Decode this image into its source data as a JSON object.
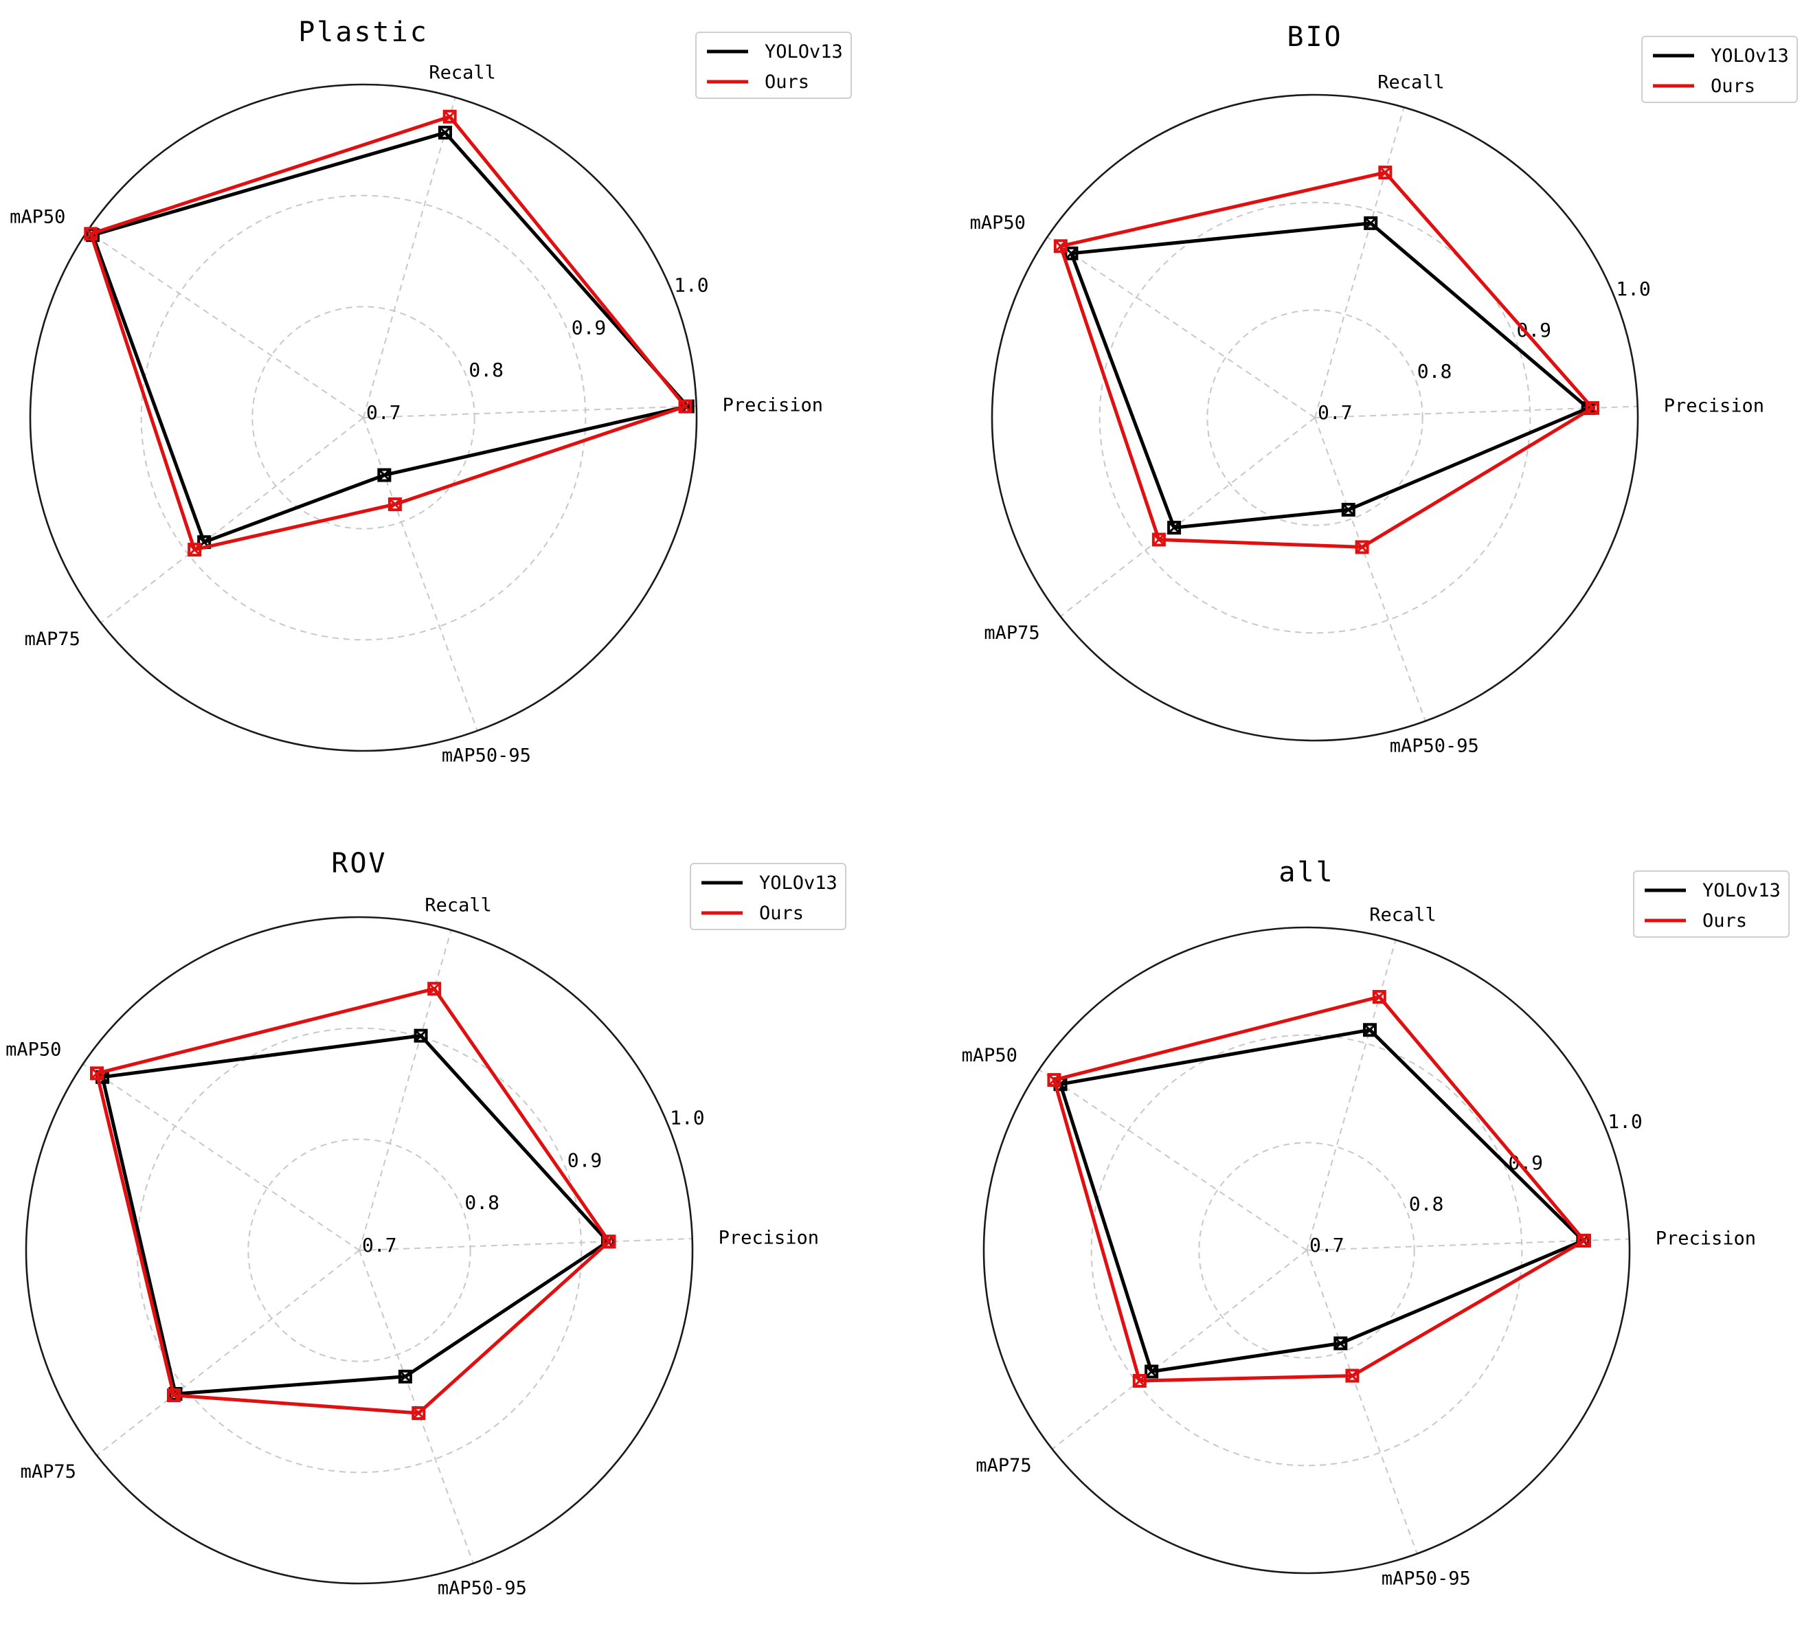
{
  "chart_data": [
    {
      "type": "radar",
      "title": "Plastic",
      "axes": [
        "Precision",
        "Recall",
        "mAP50",
        "mAP75",
        "mAP50-95"
      ],
      "rlim": [
        0.7,
        1.0
      ],
      "r_ticks": [
        "0.7",
        "0.8",
        "0.9",
        "1.0"
      ],
      "grid": true,
      "legend_position": "top-right",
      "series": [
        {
          "name": "YOLOv13",
          "color": "#000000",
          "values": [
            0.992,
            0.967,
            0.994,
            0.882,
            0.755
          ]
        },
        {
          "name": "Ours",
          "color": "#e01010",
          "values": [
            0.99,
            0.982,
            0.996,
            0.893,
            0.783
          ]
        }
      ]
    },
    {
      "type": "radar",
      "title": "BIO",
      "axes": [
        "Precision",
        "Recall",
        "mAP50",
        "mAP75",
        "mAP50-95"
      ],
      "rlim": [
        0.7,
        1.0
      ],
      "r_ticks": [
        "0.7",
        "0.8",
        "0.9",
        "1.0"
      ],
      "grid": true,
      "legend_position": "top-right",
      "series": [
        {
          "name": "YOLOv13",
          "color": "#000000",
          "values": [
            0.954,
            0.888,
            0.973,
            0.866,
            0.791
          ]
        },
        {
          "name": "Ours",
          "color": "#e01010",
          "values": [
            0.958,
            0.937,
            0.985,
            0.884,
            0.828
          ]
        }
      ]
    },
    {
      "type": "radar",
      "title": "ROV",
      "axes": [
        "Precision",
        "Recall",
        "mAP50",
        "mAP75",
        "mAP50-95"
      ],
      "rlim": [
        0.7,
        1.0
      ],
      "r_ticks": [
        "0.7",
        "0.8",
        "0.9",
        "1.0"
      ],
      "grid": true,
      "legend_position": "top-right",
      "series": [
        {
          "name": "YOLOv13",
          "color": "#000000",
          "values": [
            0.924,
            0.901,
            0.979,
            0.91,
            0.821
          ]
        },
        {
          "name": "Ours",
          "color": "#e01010",
          "values": [
            0.925,
            0.945,
            0.985,
            0.912,
            0.856
          ]
        }
      ]
    },
    {
      "type": "radar",
      "title": "all",
      "axes": [
        "Precision",
        "Recall",
        "mAP50",
        "mAP75",
        "mAP50-95"
      ],
      "rlim": [
        0.7,
        1.0
      ],
      "r_ticks": [
        "0.7",
        "0.8",
        "0.9",
        "1.0"
      ],
      "grid": true,
      "legend_position": "top-right",
      "series": [
        {
          "name": "YOLOv13",
          "color": "#000000",
          "values": [
            0.957,
            0.913,
            0.976,
            0.883,
            0.792
          ]
        },
        {
          "name": "Ours",
          "color": "#e01010",
          "values": [
            0.958,
            0.945,
            0.983,
            0.897,
            0.824
          ]
        }
      ]
    }
  ]
}
